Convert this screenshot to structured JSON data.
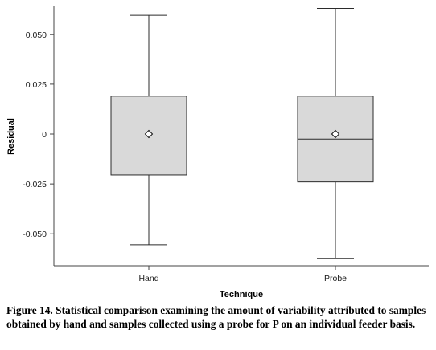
{
  "chart_data": {
    "type": "box",
    "xlabel": "Technique",
    "ylabel": "Residual",
    "ylim": [
      -0.066,
      0.064
    ],
    "yticks": [
      0.05,
      0.025,
      0,
      -0.025,
      -0.05
    ],
    "ytick_labels": [
      "0.050",
      "0.025",
      "0",
      "-0.025",
      "-0.050"
    ],
    "categories": [
      "Hand",
      "Probe"
    ],
    "boxes": [
      {
        "category": "Hand",
        "min": -0.0555,
        "q1": -0.0205,
        "median": 0.001,
        "q3": 0.019,
        "max": 0.0595,
        "mean": 0.0
      },
      {
        "category": "Probe",
        "min": -0.0625,
        "q1": -0.024,
        "median": -0.0025,
        "q3": 0.019,
        "max": 0.063,
        "mean": 0.0
      }
    ],
    "box_fill": "#d9d9d9",
    "line_color": "#2b2b2b"
  },
  "caption": "Figure 14. Statistical comparison examining the amount of variability attributed to samples obtained by hand and samples collected using a probe for P on an individual feeder basis."
}
